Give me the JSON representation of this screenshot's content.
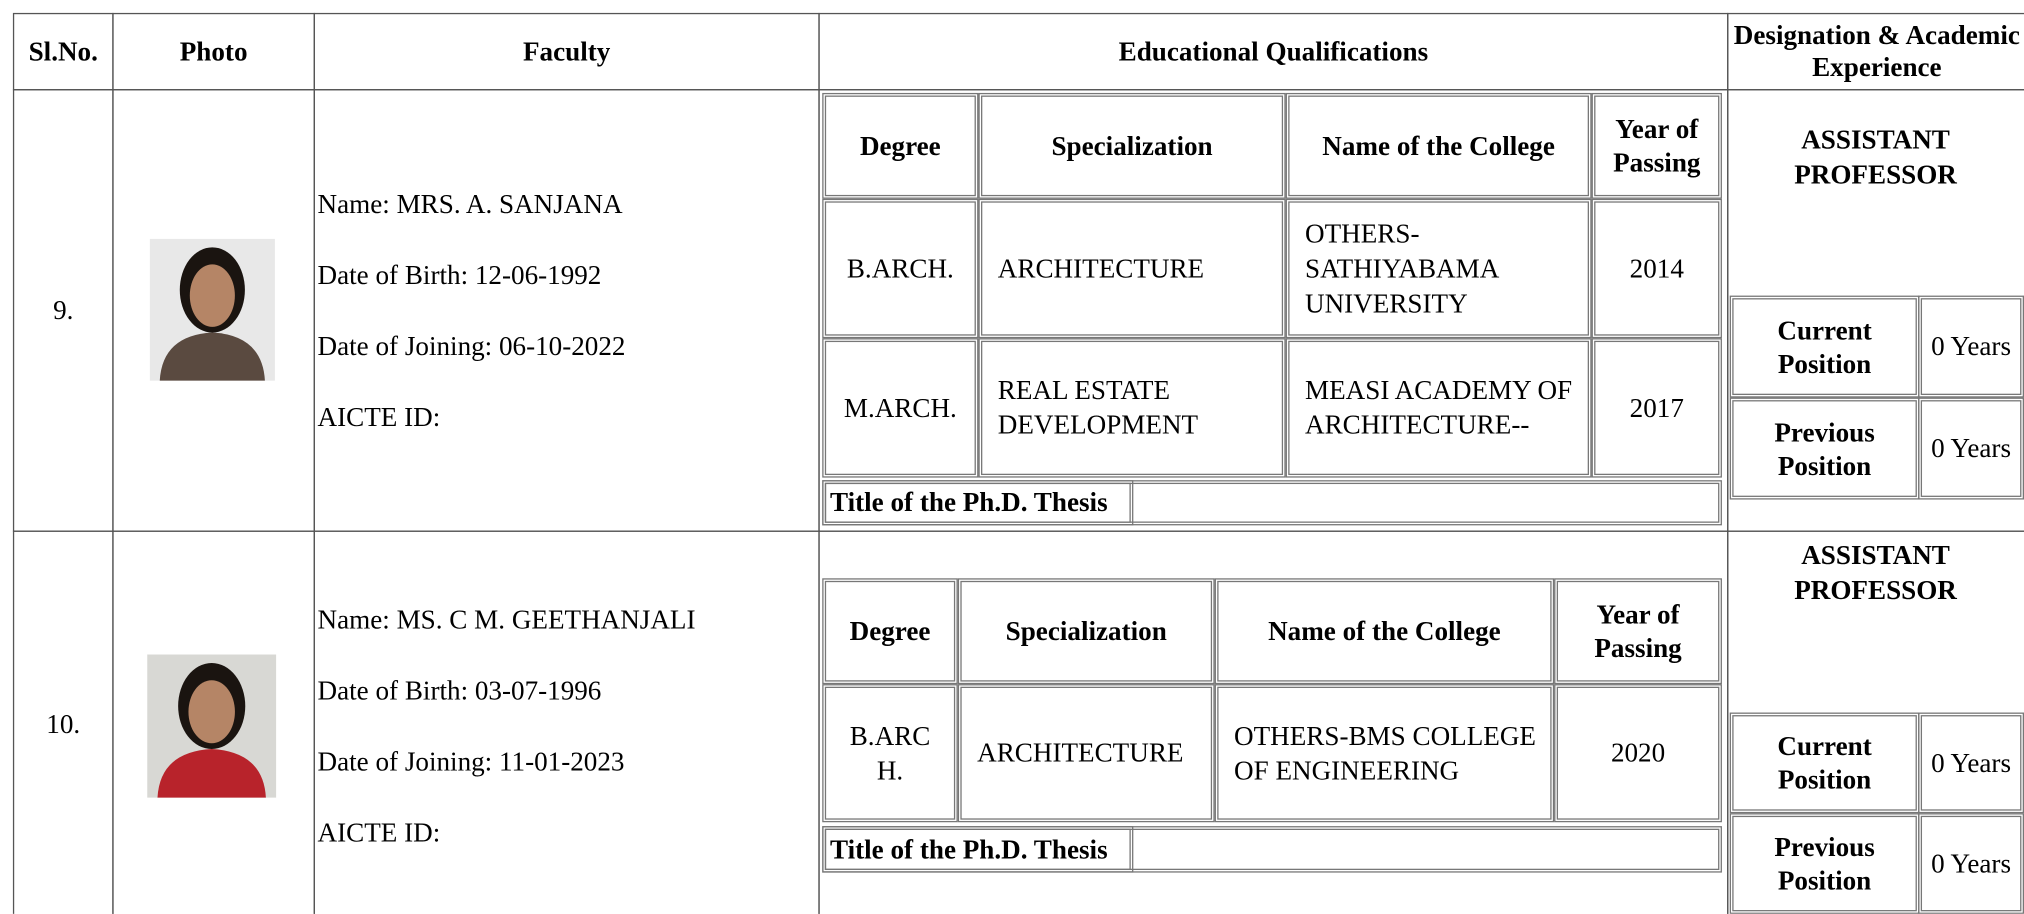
{
  "header": {
    "columns": [
      "Sl.No.",
      "Photo",
      "Faculty",
      "Educational Qualifications",
      "Designation & Academic Experience"
    ]
  },
  "rows": [
    {
      "sl_no": "9.",
      "name": "Name: MRS. A. SANJANA",
      "dob": "Date of Birth: 12-06-1992",
      "doj": "Date of Joining: 06-10-2022",
      "aicte": "AICTE ID:",
      "qual_header": [
        "Degree",
        "Specialization",
        "Name of the College",
        "Year of Passing"
      ],
      "qualifications": [
        [
          "B.ARCH.",
          "ARCHITECTURE",
          "OTHERS-SATHIYABAMA UNIVERSITY",
          "2014"
        ],
        [
          "M.ARCH.",
          "REAL ESTATE DEVELOPMENT",
          "MEASI ACADEMY OF ARCHITECTURE--",
          "2017"
        ]
      ],
      "thesis_label": "Title of the Ph.D. Thesis",
      "designation": "ASSISTANT PROFESSOR",
      "current_label": "Current Position",
      "current_value": "0 Years",
      "previous_label": "Previous Position",
      "previous_value": "0 Years"
    },
    {
      "sl_no": "10.",
      "name": "Name: MS. C M. GEETHANJALI",
      "dob": "Date of Birth: 03-07-1996",
      "doj": "Date of Joining: 11-01-2023",
      "aicte": "AICTE ID:",
      "qual_header": [
        "Degree",
        "Specialization",
        "Name of the College",
        "Year of Passing"
      ],
      "qualifications": [
        [
          "B.ARCH.",
          "ARCHITECTURE",
          "OTHERS-BMS COLLEGE OF ENGINEERING",
          "2020"
        ]
      ],
      "thesis_label": "Title of the Ph.D. Thesis",
      "designation": "ASSISTANT PROFESSOR",
      "current_label": "Current Position",
      "current_value": "0 Years",
      "previous_label": "Previous Position",
      "previous_value": "0 Years"
    }
  ]
}
